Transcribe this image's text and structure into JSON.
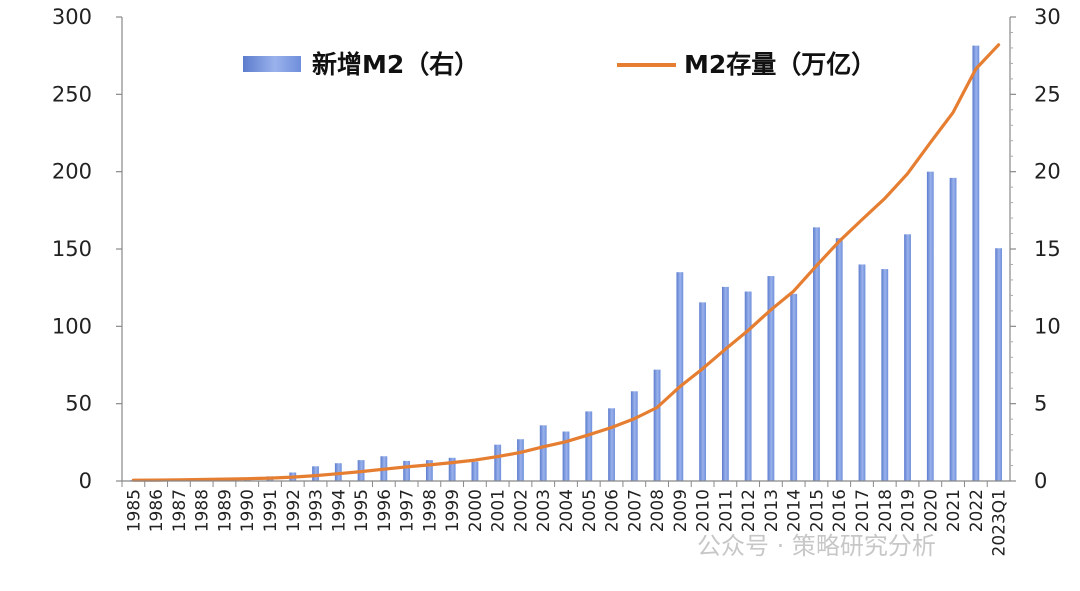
{
  "chart_data": {
    "type": "bar+line",
    "categories": [
      "1985",
      "1986",
      "1987",
      "1988",
      "1989",
      "1990",
      "1991",
      "1992",
      "1993",
      "1994",
      "1995",
      "1996",
      "1997",
      "1998",
      "1999",
      "2000",
      "2001",
      "2002",
      "2003",
      "2004",
      "2005",
      "2006",
      "2007",
      "2008",
      "2009",
      "2010",
      "2011",
      "2012",
      "2013",
      "2014",
      "2015",
      "2016",
      "2017",
      "2018",
      "2019",
      "2020",
      "2021",
      "2022",
      "2023Q1"
    ],
    "series": [
      {
        "name": "新增M2（右）",
        "type": "bar",
        "axis": "left",
        "color": "#7090d8",
        "values": [
          0.5,
          0.5,
          0.7,
          0.9,
          1.0,
          2.0,
          3.0,
          5.5,
          9.5,
          11.5,
          13.5,
          16.0,
          13.0,
          13.5,
          15.0,
          12.5,
          23.5,
          27.0,
          36.0,
          32.0,
          45.0,
          47.0,
          58.0,
          72.0,
          135.0,
          115.5,
          125.5,
          122.5,
          132.5,
          121.0,
          164.0,
          157.0,
          140.0,
          137.0,
          159.5,
          200.0,
          196.0,
          281.5,
          150.5
        ]
      },
      {
        "name": "M2存量（万亿）",
        "type": "line",
        "axis": "right",
        "color": "#e67e32",
        "values": [
          0.05,
          0.06,
          0.08,
          0.1,
          0.12,
          0.15,
          0.19,
          0.25,
          0.35,
          0.47,
          0.61,
          0.76,
          0.91,
          1.04,
          1.19,
          1.35,
          1.58,
          1.85,
          2.21,
          2.54,
          2.99,
          3.46,
          4.03,
          4.75,
          6.1,
          7.26,
          8.52,
          9.74,
          11.07,
          12.28,
          13.92,
          15.5,
          16.9,
          18.27,
          19.87,
          21.87,
          23.83,
          26.64,
          28.2
        ]
      }
    ],
    "y_left": {
      "min": 0,
      "max": 300,
      "ticks": [
        0,
        50,
        100,
        150,
        200,
        250,
        300
      ]
    },
    "y_right": {
      "min": 0,
      "max": 30,
      "ticks": [
        0,
        5,
        10,
        15,
        20,
        25,
        30
      ]
    },
    "legend": [
      "新增M2（右）",
      "M2存量（万亿）"
    ],
    "legend_position": "top",
    "title": "",
    "xlabel": "",
    "ylabel": ""
  },
  "watermark": "公众号 · 策略研究分析"
}
